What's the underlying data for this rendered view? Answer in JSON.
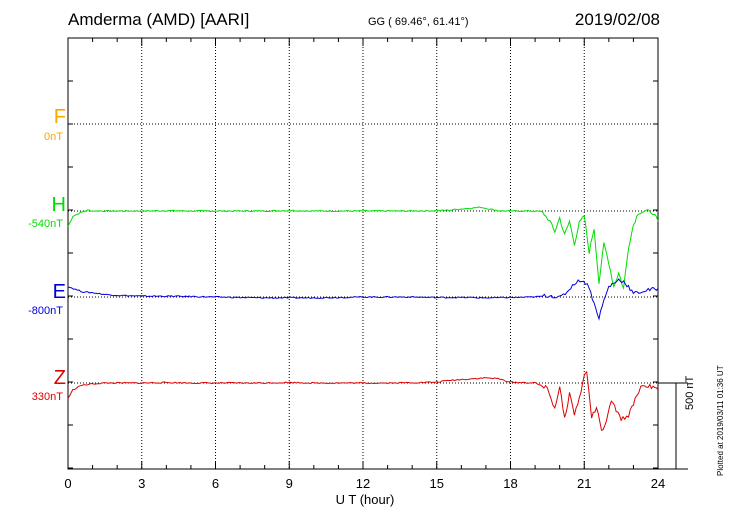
{
  "header": {
    "station": "Amderma (AMD)  [AARI]",
    "coords": "GG ( 69.46°,  61.41°)",
    "date": "2019/02/08"
  },
  "footer": {
    "plotted": "Plotted at 2019/03/11 01:36 UT",
    "scale": "500 nT"
  },
  "colors": {
    "F": "#ffa500",
    "H": "#00dd00",
    "E": "#0000dd",
    "Z": "#dd0000"
  },
  "components": [
    {
      "name": "F",
      "baseline": "0nT"
    },
    {
      "name": "H",
      "baseline": "-540nT"
    },
    {
      "name": "E",
      "baseline": "-800nT"
    },
    {
      "name": "Z",
      "baseline": "330nT"
    }
  ],
  "chart_data": {
    "type": "line",
    "xlabel": "U T (hour)",
    "xlim": [
      0,
      24
    ],
    "xticks": [
      "0",
      "3",
      "6",
      "9",
      "12",
      "15",
      "18",
      "21",
      "24"
    ],
    "grid": true,
    "series": [
      {
        "name": "H",
        "x": [
          0,
          0.2,
          0.5,
          0.8,
          1.0,
          1.5,
          2,
          3,
          4,
          5,
          6,
          7,
          8,
          9,
          10,
          11,
          12,
          13,
          14,
          15,
          15.5,
          16,
          16.5,
          16.8,
          17.2,
          17.6,
          18,
          18.5,
          19,
          19.3,
          19.6,
          19.8,
          20.0,
          20.2,
          20.4,
          20.6,
          20.8,
          21.0,
          21.2,
          21.4,
          21.6,
          21.8,
          22.0,
          22.2,
          22.4,
          22.6,
          22.8,
          23.0,
          23.2,
          23.5,
          23.8,
          24
        ],
        "values": [
          -90,
          -30,
          -10,
          5,
          0,
          0,
          0,
          0,
          2,
          0,
          0,
          0,
          0,
          3,
          0,
          0,
          0,
          0,
          0,
          2,
          5,
          12,
          18,
          22,
          10,
          0,
          0,
          0,
          0,
          -5,
          -60,
          -120,
          -40,
          -140,
          -60,
          -190,
          -70,
          -30,
          -240,
          -100,
          -420,
          -190,
          -300,
          -440,
          -360,
          -450,
          -210,
          -80,
          -10,
          0,
          -10,
          -60
        ]
      },
      {
        "name": "E",
        "x": [
          0,
          0.3,
          0.6,
          1,
          1.5,
          2,
          3,
          4,
          5,
          6,
          7,
          8,
          9,
          10,
          11,
          12,
          13,
          14,
          15,
          16,
          17,
          18,
          19,
          19.6,
          20.0,
          20.3,
          20.6,
          20.9,
          21.2,
          21.4,
          21.6,
          21.8,
          22.0,
          22.2,
          22.4,
          22.6,
          22.8,
          23.0,
          23.3,
          23.6,
          24
        ],
        "values": [
          60,
          45,
          30,
          25,
          15,
          10,
          5,
          5,
          3,
          0,
          -3,
          -5,
          -5,
          -5,
          -3,
          0,
          0,
          0,
          -3,
          -3,
          -5,
          -3,
          0,
          10,
          -5,
          30,
          80,
          100,
          60,
          -40,
          -120,
          -20,
          60,
          80,
          100,
          90,
          60,
          20,
          30,
          40,
          50
        ]
      },
      {
        "name": "Z",
        "x": [
          0,
          0.2,
          0.5,
          1,
          1.5,
          2,
          3,
          4,
          5,
          6,
          7,
          8,
          9,
          10,
          11,
          12,
          13,
          14,
          15,
          15.5,
          16,
          16.5,
          17,
          17.5,
          18,
          19,
          19.5,
          19.8,
          20.0,
          20.2,
          20.4,
          20.6,
          20.8,
          21.0,
          21.1,
          21.3,
          21.5,
          21.7,
          21.9,
          22.1,
          22.3,
          22.5,
          22.8,
          23.0,
          23.3,
          23.6,
          24
        ],
        "values": [
          -90,
          -40,
          -15,
          -5,
          0,
          0,
          0,
          3,
          0,
          0,
          0,
          0,
          3,
          0,
          0,
          0,
          0,
          2,
          5,
          15,
          20,
          25,
          30,
          25,
          5,
          0,
          -30,
          -150,
          -20,
          -210,
          -60,
          -180,
          -90,
          40,
          70,
          -200,
          -140,
          -280,
          -230,
          -100,
          -160,
          -210,
          -190,
          -120,
          -20,
          -15,
          -40
        ]
      }
    ]
  }
}
